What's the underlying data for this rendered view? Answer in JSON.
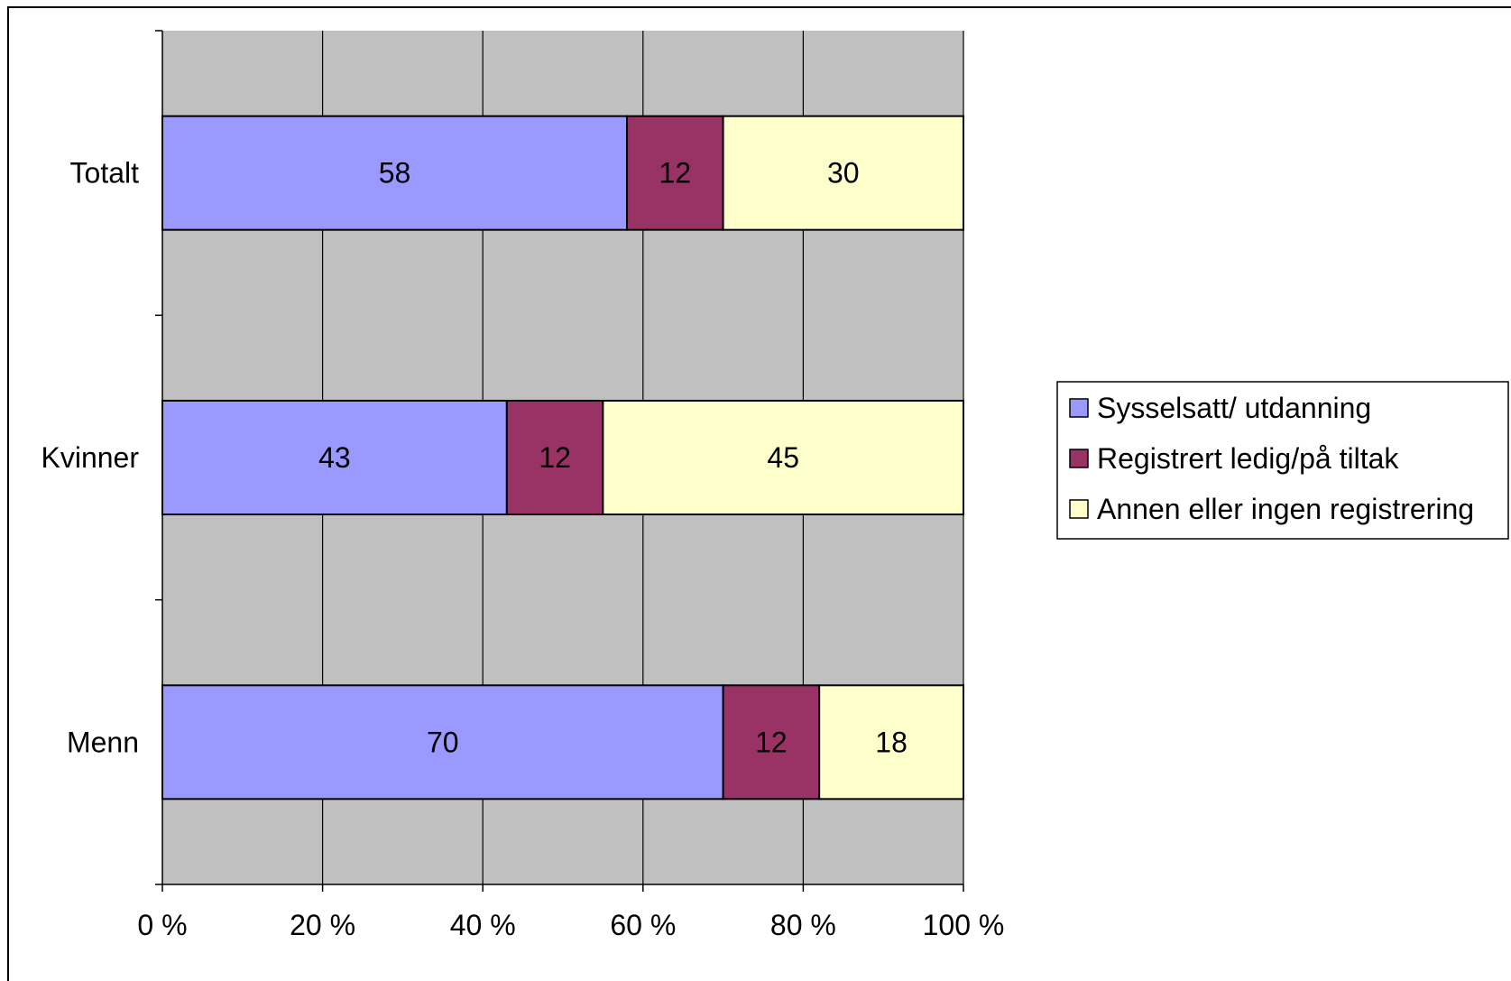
{
  "chart_data": {
    "type": "bar",
    "orientation": "horizontal",
    "stacked": "percent",
    "categories": [
      "Totalt",
      "Kvinner",
      "Menn"
    ],
    "series": [
      {
        "name": "Sysselsatt/ utdanning",
        "values": [
          58,
          43,
          70
        ],
        "color": "#9999ff"
      },
      {
        "name": "Registrert ledig/på tiltak",
        "values": [
          12,
          12,
          12
        ],
        "color": "#993366"
      },
      {
        "name": "Annen eller ingen registrering",
        "values": [
          30,
          45,
          18
        ],
        "color": "#ffffcc"
      }
    ],
    "data_labels": [
      [
        "58",
        "12",
        "30"
      ],
      [
        "43",
        "12",
        "45"
      ],
      [
        "70",
        "12",
        "18"
      ]
    ],
    "xlim": [
      0,
      100
    ],
    "x_ticks": [
      0,
      20,
      40,
      60,
      80,
      100
    ],
    "x_tick_labels": [
      "0 %",
      "20 %",
      "40 %",
      "60 %",
      "80 %",
      "100 %"
    ],
    "plot_background": "#c0c0c0",
    "grid": true,
    "legend_position": "right"
  }
}
